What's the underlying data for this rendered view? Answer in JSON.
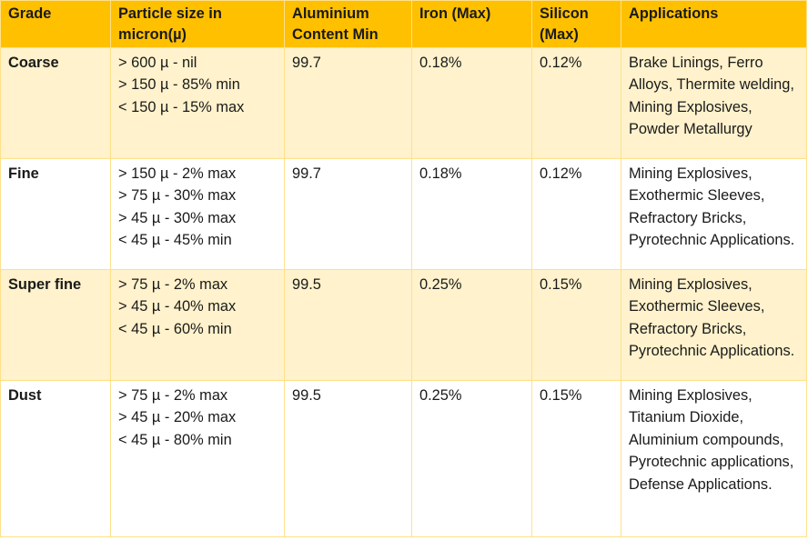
{
  "table": {
    "headers": [
      "Grade",
      "Particle size in micron(µ)",
      "Aluminium Content Min",
      "Iron (Max)",
      "Silicon (Max)",
      "Applications"
    ],
    "rows": [
      {
        "grade": "Coarse",
        "sizes": [
          "> 600 µ - nil",
          "> 150 µ - 85% min",
          "< 150 µ - 15% max"
        ],
        "aluminium": "99.7",
        "iron": "0.18%",
        "silicon": "0.12%",
        "applications": "Brake Linings, Ferro Alloys, Thermite welding, Mining Explosives, Powder Metallurgy"
      },
      {
        "grade": "Fine",
        "sizes": [
          "> 150 µ - 2% max",
          "> 75 µ - 30% max",
          "> 45 µ - 30% max",
          "< 45 µ - 45% min"
        ],
        "aluminium": "99.7",
        "iron": "0.18%",
        "silicon": "0.12%",
        "applications": "Mining Explosives, Exothermic Sleeves, Refractory Bricks, Pyrotechnic Applications."
      },
      {
        "grade": "Super fine",
        "sizes": [
          "> 75 µ - 2% max",
          "> 45 µ - 40% max",
          "< 45 µ - 60% min"
        ],
        "aluminium": "99.5",
        "iron": "0.25%",
        "silicon": "0.15%",
        "applications": "Mining Explosives, Exothermic Sleeves, Refractory Bricks, Pyrotechnic Applications."
      },
      {
        "grade": "Dust",
        "sizes": [
          "> 75 µ - 2% max",
          "> 45 µ - 20% max",
          "< 45 µ - 80% min"
        ],
        "aluminium": "99.5",
        "iron": "0.25%",
        "silicon": "0.15%",
        "applications": "Mining Explosives, Titanium Dioxide, Aluminium compounds, Pyrotechnic applications, Defense Applications."
      }
    ]
  },
  "colors": {
    "header_bg": "#ffc000",
    "shaded_row_bg": "#fff2cc",
    "border": "#ffe08a"
  }
}
